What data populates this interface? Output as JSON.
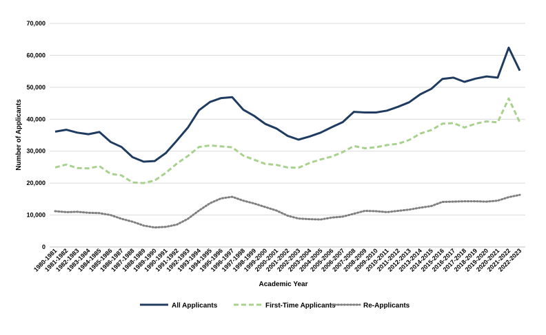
{
  "chart_data": {
    "type": "line",
    "title": "",
    "xlabel": "Academic Year",
    "ylabel": "Number of Applicants",
    "ylim": [
      0,
      70000
    ],
    "yticks": [
      "0",
      "10,000",
      "20,000",
      "30,000",
      "40,000",
      "50,000",
      "60,000",
      "70,000"
    ],
    "ytick_values": [
      0,
      10000,
      20000,
      30000,
      40000,
      50000,
      60000,
      70000
    ],
    "grid": true,
    "legend_position": "bottom",
    "categories": [
      "1980-1981",
      "1981-1982",
      "1982-1983",
      "1983-1984",
      "1984-1985",
      "1985-1986",
      "1986-1987",
      "1987-1988",
      "1988-1989",
      "1989-1990",
      "1990-1991",
      "1991-1992",
      "1992-1993",
      "1993-1994",
      "1994-1995",
      "1995-1996",
      "1996-1997",
      "1997-1998",
      "1998-1999",
      "1999-2000",
      "2000-2001",
      "2001-2002",
      "2002-2003",
      "2003-2004",
      "2004-2005",
      "2005-2006",
      "2006-2007",
      "2007-2008",
      "2008-2009",
      "2009-2010",
      "2010-2011",
      "2011-2012",
      "2012-2013",
      "2013-2014",
      "2014-2015",
      "2015-2016",
      "2016-2017",
      "2017-2018",
      "2018-2019",
      "2019-2020",
      "2020-2021",
      "2021-2022",
      "2022-2023"
    ],
    "series": [
      {
        "name": "All Applicants",
        "color": "#1f3c60",
        "dash": "solid",
        "values": [
          36100,
          36700,
          35800,
          35300,
          36000,
          32900,
          31300,
          28100,
          26700,
          26900,
          29400,
          33300,
          37400,
          42800,
          45400,
          46600,
          46900,
          43000,
          41000,
          38500,
          37100,
          34800,
          33600,
          34600,
          35800,
          37500,
          39100,
          42300,
          42100,
          42100,
          42700,
          43900,
          45300,
          47800,
          49500,
          52600,
          53000,
          51700,
          52700,
          53400,
          53000,
          62400,
          55200
        ]
      },
      {
        "name": "First-Time Applicants",
        "color": "#a9d18e",
        "dash": "dashed",
        "values": [
          24900,
          25800,
          24700,
          24600,
          25300,
          22900,
          22400,
          20200,
          20000,
          20800,
          23200,
          26100,
          28500,
          31300,
          31800,
          31500,
          31200,
          28600,
          27300,
          26000,
          25700,
          24900,
          24800,
          26300,
          27400,
          28300,
          29700,
          31600,
          30900,
          31200,
          31900,
          32300,
          33500,
          35500,
          36600,
          38600,
          38800,
          37400,
          38600,
          39300,
          39000,
          46500,
          39000
        ]
      },
      {
        "name": "Re-Applicants",
        "color": "#7f7f7f",
        "dash": "dotted",
        "values": [
          11200,
          10900,
          11000,
          10700,
          10600,
          10000,
          8800,
          7900,
          6700,
          6100,
          6300,
          7000,
          8800,
          11400,
          13700,
          15200,
          15700,
          14500,
          13600,
          12500,
          11400,
          9800,
          8900,
          8700,
          8600,
          9200,
          9500,
          10400,
          11300,
          11200,
          10900,
          11300,
          11700,
          12300,
          12800,
          14100,
          14200,
          14300,
          14300,
          14200,
          14500,
          15600,
          16300
        ]
      }
    ]
  }
}
